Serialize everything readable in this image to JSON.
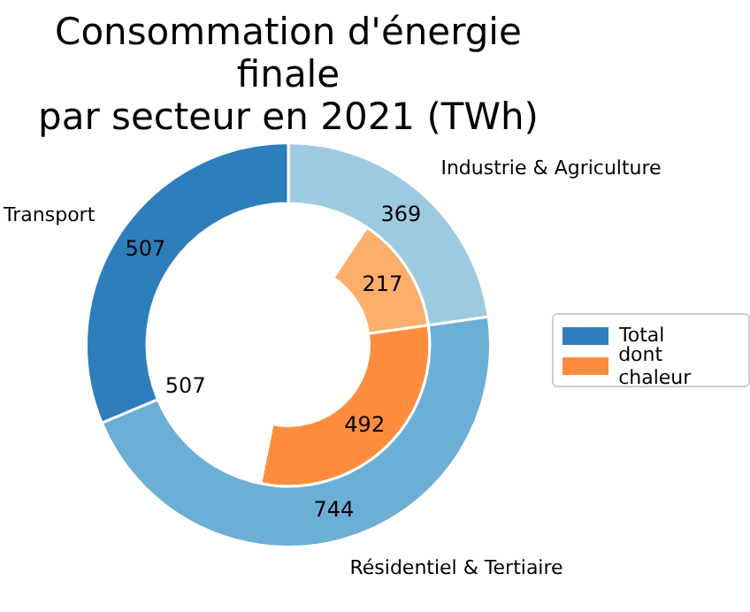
{
  "chart_data": {
    "type": "donut",
    "title": "Consommation d'énergie finale\npar secteur en 2021 (TWh)",
    "categories": [
      "Industrie & Agriculture",
      "Résidentiel & Tertiaire",
      "Transport"
    ],
    "series": [
      {
        "name": "Total",
        "color": "#2f7ebc",
        "colors": [
          "#9ecae1",
          "#6baed6",
          "#2f7ebc"
        ],
        "values": [
          369,
          744,
          507
        ]
      },
      {
        "name": "dont chaleur",
        "color": "#fd8d3c",
        "colors": [
          "#fdae6b",
          "#fd8d3c",
          "#ffffff"
        ],
        "values": [
          217,
          492,
          507
        ]
      }
    ],
    "data_labels": true,
    "legend": "right"
  }
}
